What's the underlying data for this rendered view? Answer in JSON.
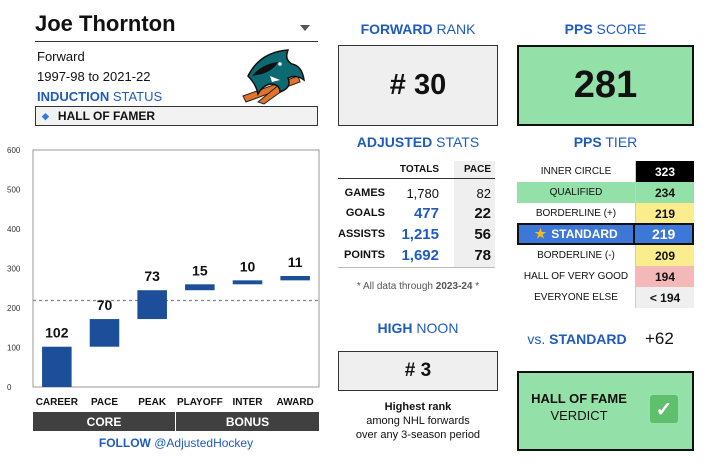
{
  "player": {
    "name": "Joe Thornton",
    "position": "Forward",
    "years": "1997-98 to 2021-22",
    "induction_label_bold": "INDUCTION",
    "induction_label_rest": " STATUS",
    "status_icon": "diamond-icon",
    "status": "HALL OF FAMER",
    "logo": "san-jose-sharks-logo"
  },
  "forward_rank": {
    "header_bold": "FORWARD",
    "header_rest": " RANK",
    "value": "# 30"
  },
  "adjusted_stats": {
    "header_bold": "ADJUSTED",
    "header_rest": " STATS",
    "columns": [
      "TOTALS",
      "PACE"
    ],
    "rows": [
      {
        "label": "GAMES",
        "total": "1,780",
        "pace": "82"
      },
      {
        "label": "GOALS",
        "total": "477",
        "pace": "22"
      },
      {
        "label": "ASSISTS",
        "total": "1,215",
        "pace": "56"
      },
      {
        "label": "POINTS",
        "total": "1,692",
        "pace": "78"
      }
    ],
    "note_pre": "* All data through ",
    "note_bold": "2023-24",
    "note_post": " *"
  },
  "high_noon": {
    "header_bold": "HIGH",
    "header_rest": " NOON",
    "value": "# 3",
    "desc_bold": "Highest rank",
    "desc_line2": "among NHL forwards",
    "desc_line3": "over any 3-season period"
  },
  "pps": {
    "header_bold": "PPS",
    "header_rest": " SCORE",
    "score": "281",
    "tier_header_bold": "PPS",
    "tier_header_rest": " TIER",
    "tiers": [
      {
        "name": "INNER CIRCLE",
        "value": "323",
        "name_bg": "#ffffff",
        "val_bg": "#000000",
        "val_color": "#ffffff"
      },
      {
        "name": "QUALIFIED",
        "value": "234",
        "name_bg": "#93e1a8",
        "val_bg": "#93e1a8",
        "val_color": "#111111"
      },
      {
        "name": "BORDERLINE (+)",
        "value": "219",
        "name_bg": "#ffffff",
        "val_bg": "#fbed8e",
        "val_color": "#111111"
      },
      {
        "name": "STANDARD",
        "value": "219",
        "name_bg": "#3d78d8",
        "val_bg": "#3d78d8",
        "val_color": "#ffffff"
      },
      {
        "name": "BORDERLINE (-)",
        "value": "209",
        "name_bg": "#ffffff",
        "val_bg": "#fbed8e",
        "val_color": "#111111"
      },
      {
        "name": "HALL OF VERY GOOD",
        "value": "194",
        "name_bg": "#ffffff",
        "val_bg": "#f4b8b8",
        "val_color": "#111111"
      },
      {
        "name": "EVERYONE ELSE",
        "value": "< 194",
        "name_bg": "#ffffff",
        "val_bg": "#efefef",
        "val_color": "#111111"
      }
    ],
    "vs_pre": "vs. ",
    "vs_bold": "STANDARD",
    "vs_value": "+62",
    "verdict_line1": "HALL OF FAME",
    "verdict_line2": "VERDICT",
    "verdict_icon": "checkmark-icon"
  },
  "chart_data": {
    "type": "bar",
    "subtype": "waterfall",
    "categories": [
      "CAREER",
      "PACE",
      "PEAK",
      "PLAYOFF",
      "INTER",
      "AWARD"
    ],
    "values": [
      102,
      70,
      73,
      15,
      10,
      11
    ],
    "data_labels": [
      "102",
      "70",
      "73",
      "15",
      "10",
      "11"
    ],
    "ylim": [
      0,
      600
    ],
    "yticks": [
      "0",
      "100",
      "200",
      "300",
      "400",
      "500",
      "600"
    ],
    "reference_line": 219,
    "groups": [
      {
        "label": "CORE",
        "categories": [
          "CAREER",
          "PACE",
          "PEAK"
        ]
      },
      {
        "label": "BONUS",
        "categories": [
          "PLAYOFF",
          "INTER",
          "AWARD"
        ]
      }
    ],
    "bar_color": "#1d4e99",
    "grid": false
  },
  "footer": {
    "follow_bold": "FOLLOW",
    "follow_rest": " @AdjustedHockey"
  }
}
